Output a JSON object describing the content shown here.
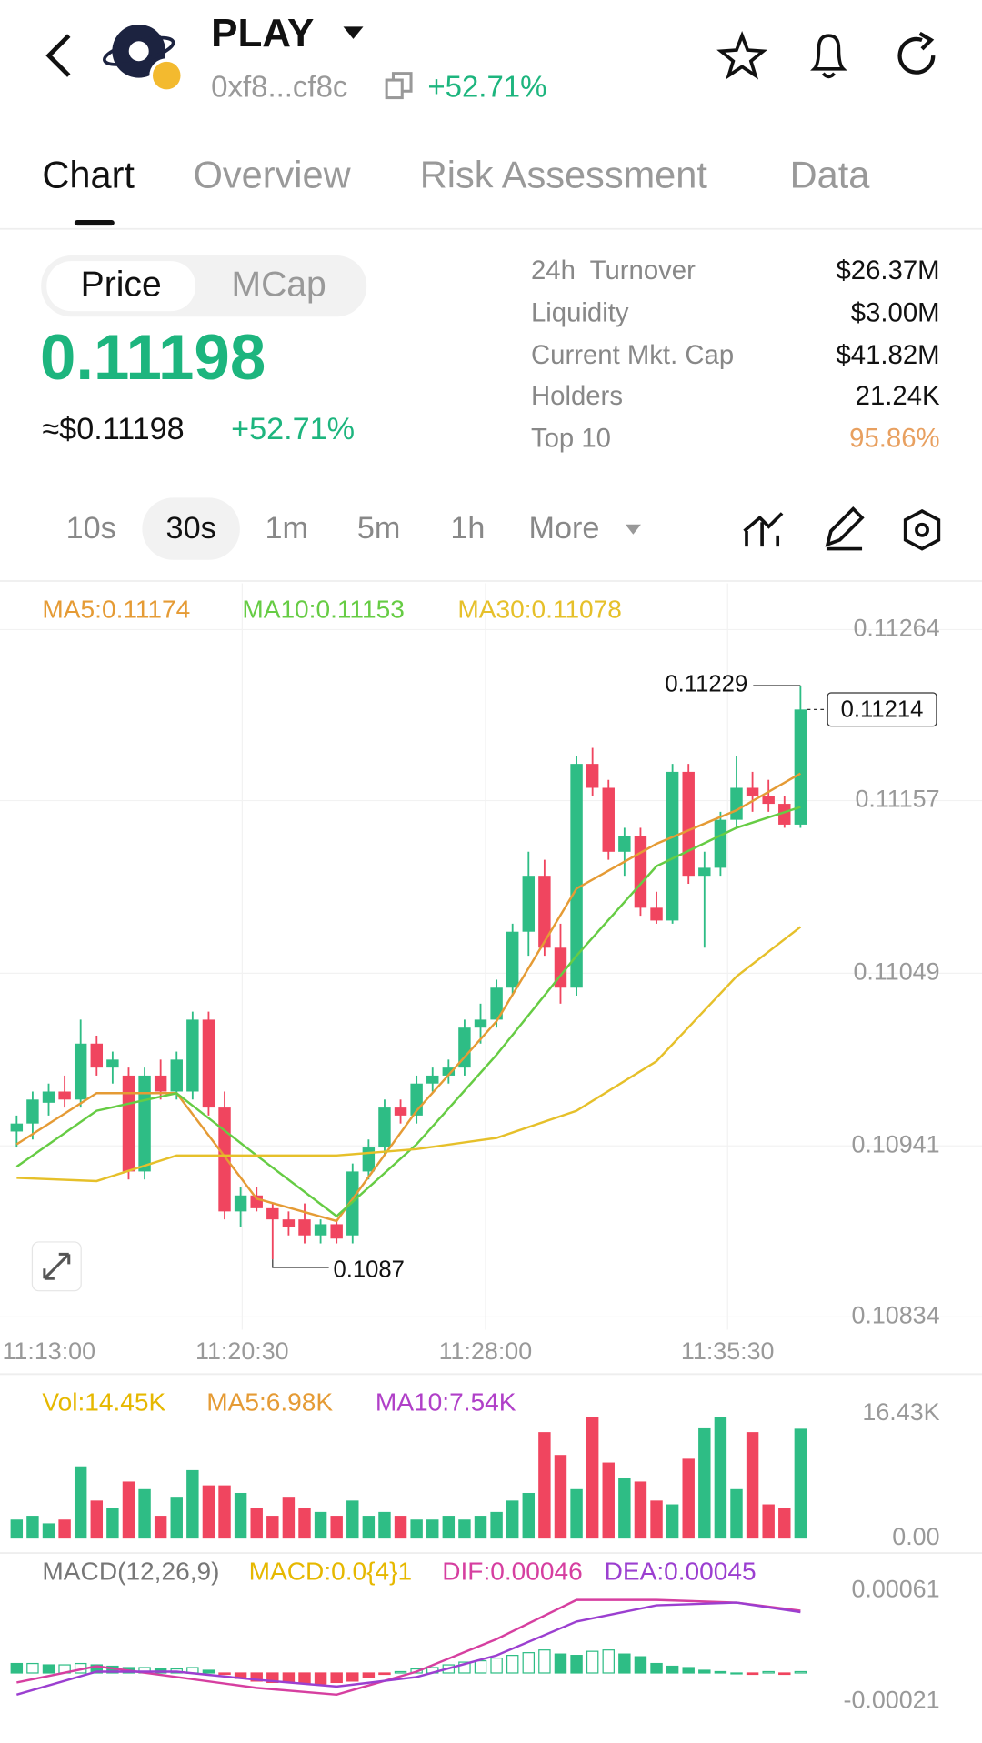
{
  "header": {
    "title": "PLAY",
    "address": "0xf8...cf8c",
    "change": "+52.71%"
  },
  "tabs": [
    "Chart",
    "Overview",
    "Risk Assessment",
    "Data"
  ],
  "toggle": [
    "Price",
    "MCap"
  ],
  "price": {
    "value": "0.11198",
    "usd": "≈$0.11198",
    "change": "+52.71%"
  },
  "stats": [
    [
      "24h  Turnover",
      "$26.37M"
    ],
    [
      "Liquidity",
      "$3.00M"
    ],
    [
      "Current Mkt. Cap",
      "$41.82M"
    ],
    [
      "Holders",
      "21.24K"
    ],
    [
      "Top 10",
      "95.86%"
    ]
  ],
  "intervals": [
    "10s",
    "30s",
    "1m",
    "5m",
    "1h",
    "More"
  ],
  "chart_data": [
    {
      "type": "candlestick",
      "ma_legend": [
        {
          "text": "MA5:0.11174",
          "color": "#e59b35"
        },
        {
          "text": "MA10:0.11153",
          "color": "#66cc44"
        },
        {
          "text": "MA30:0.11078",
          "color": "#e6c02a"
        }
      ],
      "x_labels": [
        "11:13:00",
        "11:20:30",
        "11:28:00",
        "11:35:30"
      ],
      "ylim": [
        0.10826,
        0.11293
      ],
      "yticks": [
        0.11264,
        0.11157,
        0.11049,
        0.10941,
        0.10834
      ],
      "grid": true,
      "up_color": "#2ebd85",
      "down_color": "#f0455f",
      "open": [
        0.1095,
        0.10955,
        0.10968,
        0.10975,
        0.1097,
        0.11005,
        0.1099,
        0.10985,
        0.10925,
        0.10985,
        0.10975,
        0.10975,
        0.1102,
        0.10965,
        0.109,
        0.1091,
        0.10902,
        0.10895,
        0.10895,
        0.10885,
        0.10892,
        0.10885,
        0.10925,
        0.1094,
        0.10965,
        0.1096,
        0.1098,
        0.10985,
        0.1099,
        0.11015,
        0.1102,
        0.1104,
        0.11075,
        0.1111,
        0.11065,
        0.1104,
        0.1118,
        0.11165,
        0.11125,
        0.11135,
        0.1109,
        0.11082,
        0.11175,
        0.1111,
        0.11115,
        0.11145,
        0.11165,
        0.1116,
        0.11155,
        0.11142
      ],
      "high": [
        0.1096,
        0.10975,
        0.1098,
        0.10985,
        0.1102,
        0.1101,
        0.11,
        0.1099,
        0.1099,
        0.10995,
        0.11,
        0.11025,
        0.11025,
        0.10975,
        0.10915,
        0.10915,
        0.10905,
        0.109,
        0.10905,
        0.10895,
        0.10895,
        0.1093,
        0.10945,
        0.1097,
        0.1097,
        0.10985,
        0.1099,
        0.10995,
        0.1102,
        0.1103,
        0.11045,
        0.1108,
        0.11125,
        0.1112,
        0.1108,
        0.11185,
        0.1119,
        0.1117,
        0.1114,
        0.1114,
        0.111,
        0.1118,
        0.1118,
        0.11125,
        0.1115,
        0.11185,
        0.11175,
        0.1117,
        0.1116,
        0.11229
      ],
      "low": [
        0.1094,
        0.10945,
        0.1096,
        0.10965,
        0.10965,
        0.10985,
        0.1098,
        0.1092,
        0.1092,
        0.1097,
        0.1097,
        0.1097,
        0.1096,
        0.10895,
        0.1089,
        0.109,
        0.1087,
        0.10885,
        0.1088,
        0.1088,
        0.1088,
        0.1088,
        0.1092,
        0.10935,
        0.10955,
        0.10955,
        0.10975,
        0.1098,
        0.10985,
        0.11005,
        0.11015,
        0.11035,
        0.1106,
        0.1106,
        0.1103,
        0.11035,
        0.1116,
        0.1112,
        0.1111,
        0.11085,
        0.1108,
        0.1108,
        0.11105,
        0.11065,
        0.1111,
        0.1114,
        0.1115,
        0.1115,
        0.1114,
        0.1114
      ],
      "close": [
        0.10955,
        0.1097,
        0.10975,
        0.1097,
        0.11005,
        0.1099,
        0.10995,
        0.10925,
        0.10985,
        0.10975,
        0.10995,
        0.1102,
        0.10965,
        0.109,
        0.1091,
        0.10902,
        0.10895,
        0.1089,
        0.10885,
        0.10892,
        0.10883,
        0.10925,
        0.1094,
        0.10965,
        0.1096,
        0.1098,
        0.10985,
        0.1099,
        0.11015,
        0.1102,
        0.1104,
        0.11075,
        0.1111,
        0.11065,
        0.1104,
        0.1118,
        0.11165,
        0.11125,
        0.11135,
        0.1109,
        0.11082,
        0.11175,
        0.1111,
        0.11115,
        0.11145,
        0.11165,
        0.1116,
        0.11155,
        0.11142,
        0.11214
      ],
      "ma_lines": [
        {
          "color": "#e59b35",
          "index": [
            0,
            5,
            10,
            15,
            20,
            25,
            30,
            35,
            40,
            45,
            49
          ],
          "values": [
            0.10942,
            0.10974,
            0.10974,
            0.10908,
            0.10894,
            0.10963,
            0.11019,
            0.11102,
            0.1113,
            0.11151,
            0.11174
          ]
        },
        {
          "color": "#66cc44",
          "index": [
            0,
            5,
            10,
            15,
            20,
            25,
            30,
            35,
            40,
            45,
            49
          ],
          "values": [
            0.10928,
            0.10963,
            0.10974,
            0.10935,
            0.10897,
            0.10942,
            0.10998,
            0.1106,
            0.11116,
            0.1114,
            0.11153
          ]
        },
        {
          "color": "#e6c02a",
          "index": [
            0,
            5,
            10,
            15,
            20,
            25,
            30,
            35,
            40,
            45,
            49
          ],
          "values": [
            0.10921,
            0.10919,
            0.10935,
            0.10935,
            0.10935,
            0.10939,
            0.10946,
            0.10963,
            0.10994,
            0.11047,
            0.11078
          ]
        }
      ],
      "annotations": {
        "high": 0.11229,
        "low": 0.1087,
        "last": 0.11214
      }
    },
    {
      "type": "bar",
      "legend": [
        {
          "text": "Vol:14.45K",
          "color": "#e6b800"
        },
        {
          "text": "MA5:6.98K",
          "color": "#e59b35"
        },
        {
          "text": "MA10:7.54K",
          "color": "#b040c8"
        }
      ],
      "ylim": [
        0,
        19
      ],
      "yticks": [
        {
          "value": 16.43,
          "label": "16.43K"
        },
        {
          "value": 0,
          "label": "0.00"
        }
      ],
      "values": [
        2.5,
        3.0,
        2.0,
        2.5,
        9.5,
        5.0,
        4.0,
        7.5,
        6.5,
        3.0,
        5.5,
        9.0,
        7.0,
        7.0,
        6.0,
        4.0,
        3.0,
        5.5,
        4.0,
        3.5,
        3.0,
        5.0,
        3.0,
        3.5,
        3.0,
        2.5,
        2.5,
        3.0,
        2.5,
        3.0,
        3.5,
        5.0,
        6.0,
        14.0,
        11.0,
        6.5,
        16.0,
        10.0,
        8.0,
        7.5,
        5.0,
        4.5,
        10.5,
        14.5,
        16.0,
        6.5,
        14.0,
        4.5,
        4.0,
        14.45
      ]
    },
    {
      "type": "macd",
      "legend": [
        {
          "text": "MACD(12,26,9)",
          "color": "#777777"
        },
        {
          "text": "MACD:0.0{4}1",
          "color": "#e6b800"
        },
        {
          "text": "DIF:0.00046",
          "color": "#d63fa0"
        },
        {
          "text": "DEA:0.00045",
          "color": "#9b3fd0"
        }
      ],
      "ylim": [
        -0.00032,
        0.00087
      ],
      "yticks": [
        0.00061,
        -0.00021
      ],
      "histogram": [
        7e-05,
        7e-05,
        6e-05,
        6e-05,
        7e-05,
        6e-05,
        5e-05,
        4e-05,
        4e-05,
        3e-05,
        3e-05,
        4e-05,
        2e-05,
        -1e-05,
        -4e-05,
        -6e-05,
        -7e-05,
        -7e-05,
        -8e-05,
        -8e-05,
        -7e-05,
        -6e-05,
        -3e-05,
        -1e-05,
        1e-05,
        3e-05,
        4e-05,
        6e-05,
        8e-05,
        9e-05,
        0.00011,
        0.00013,
        0.00015,
        0.00017,
        0.00014,
        0.00013,
        0.00016,
        0.00017,
        0.00014,
        0.00012,
        7e-05,
        5e-05,
        4e-05,
        2e-05,
        1e-05,
        0.0,
        -1e-05,
        1e-05,
        -1e-05,
        1e-05
      ],
      "lines": [
        {
          "color": "#d63fa0",
          "index": [
            0,
            5,
            10,
            15,
            20,
            25,
            30,
            35,
            40,
            45,
            49
          ],
          "values": [
            -7e-05,
            5e-05,
            -3e-05,
            -0.00011,
            -0.00016,
            1e-05,
            0.00025,
            0.00054,
            0.00054,
            0.00052,
            0.00046
          ]
        },
        {
          "color": "#9b3fd0",
          "index": [
            0,
            5,
            10,
            15,
            20,
            25,
            30,
            35,
            40,
            45,
            49
          ],
          "values": [
            -0.00016,
            1e-05,
            1e-05,
            -5e-05,
            -0.0001,
            -3e-05,
            0.00013,
            0.00038,
            0.0005,
            0.00052,
            0.00045
          ]
        }
      ]
    }
  ]
}
